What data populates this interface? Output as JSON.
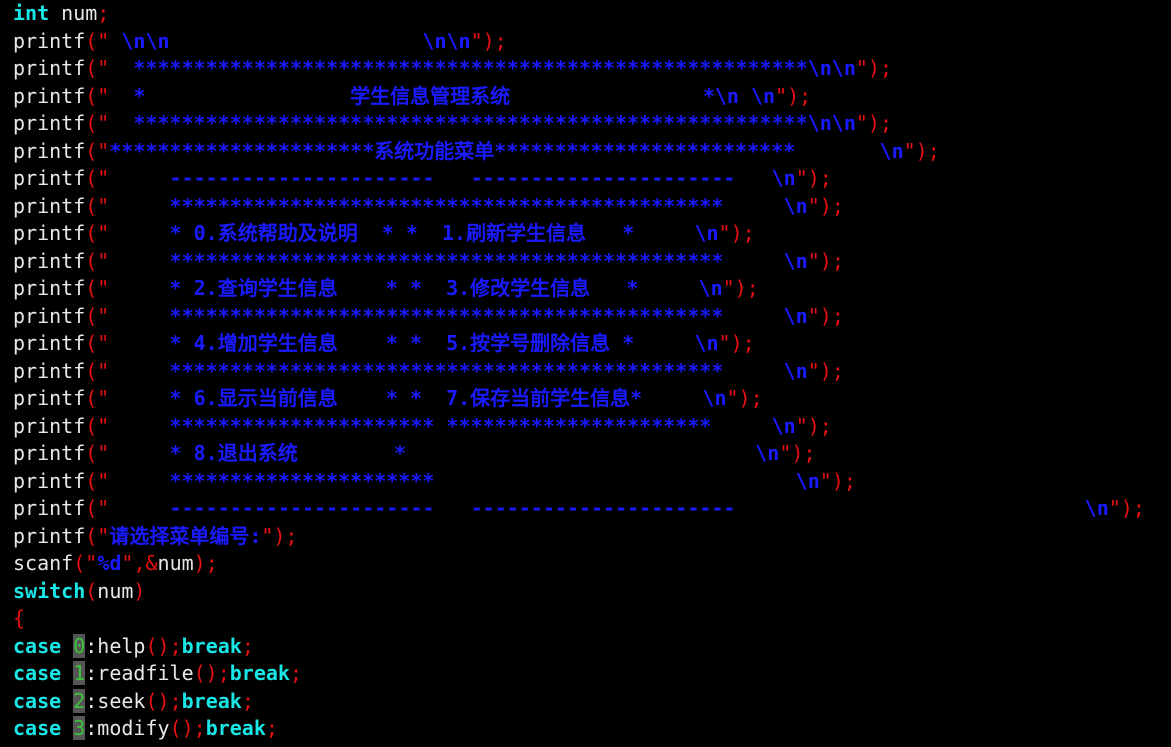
{
  "code_lines": [
    [
      "int",
      " num",
      ";"
    ],
    [
      "printf",
      "(\"",
      " \\n\\n                     \\n\\n",
      "\");"
    ],
    [
      "printf",
      "(\"",
      "  ********************************************************\\n\\n",
      "\");"
    ],
    [
      "printf",
      "(\"",
      "  *                 学生信息管理系统                *\\n \\n",
      "\");"
    ],
    [
      "printf",
      "(\"",
      "  ********************************************************\\n\\n",
      "\");"
    ],
    [
      "printf",
      "(\"",
      "**********************系统功能菜单*************************       \\n",
      "\");"
    ],
    [
      "printf",
      "(\"",
      "     ----------------------   ----------------------   \\n",
      "\");"
    ],
    [
      "printf",
      "(\"",
      "     **********************************************     \\n",
      "\");"
    ],
    [
      "printf",
      "(\"",
      "     * 0.系统帮助及说明  * *  1.刷新学生信息   *     \\n",
      "\");"
    ],
    [
      "printf",
      "(\"",
      "     **********************************************     \\n",
      "\");"
    ],
    [
      "printf",
      "(\"",
      "     * 2.查询学生信息    * *  3.修改学生信息   *     \\n",
      "\");"
    ],
    [
      "printf",
      "(\"",
      "     **********************************************     \\n",
      "\");"
    ],
    [
      "printf",
      "(\"",
      "     * 4.增加学生信息    * *  5.按学号删除信息 *     \\n",
      "\");"
    ],
    [
      "printf",
      "(\"",
      "     **********************************************     \\n",
      "\");"
    ],
    [
      "printf",
      "(\"",
      "     * 6.显示当前信息    * *  7.保存当前学生信息*     \\n",
      "\");"
    ],
    [
      "printf",
      "(\"",
      "     ********************** **********************     \\n",
      "\");"
    ],
    [
      "printf",
      "(\"",
      "     * 8.退出系统        *                             \\n",
      "\");"
    ],
    [
      "printf",
      "(\"",
      "     **********************                              \\n",
      "\");"
    ],
    [
      "printf",
      "(\"",
      "     ----------------------   ----------------------                             \\n",
      "\");"
    ],
    [
      "printf",
      "(\"",
      "请选择菜单编号:",
      "\");"
    ],
    [
      "scanf",
      "(\"",
      "%d",
      "\",&",
      "num",
      ");"
    ],
    [
      "switch",
      "(",
      "num",
      ")"
    ],
    [
      "{"
    ],
    [
      "case",
      " ",
      "0",
      ":help",
      "();",
      "break",
      ";"
    ],
    [
      "case",
      " ",
      "1",
      ":readfile",
      "();",
      "break",
      ";"
    ],
    [
      "case",
      " ",
      "2",
      ":seek",
      "();",
      "break",
      ";"
    ],
    [
      "case",
      " ",
      "3",
      ":modify",
      "();",
      "break",
      ";"
    ]
  ]
}
